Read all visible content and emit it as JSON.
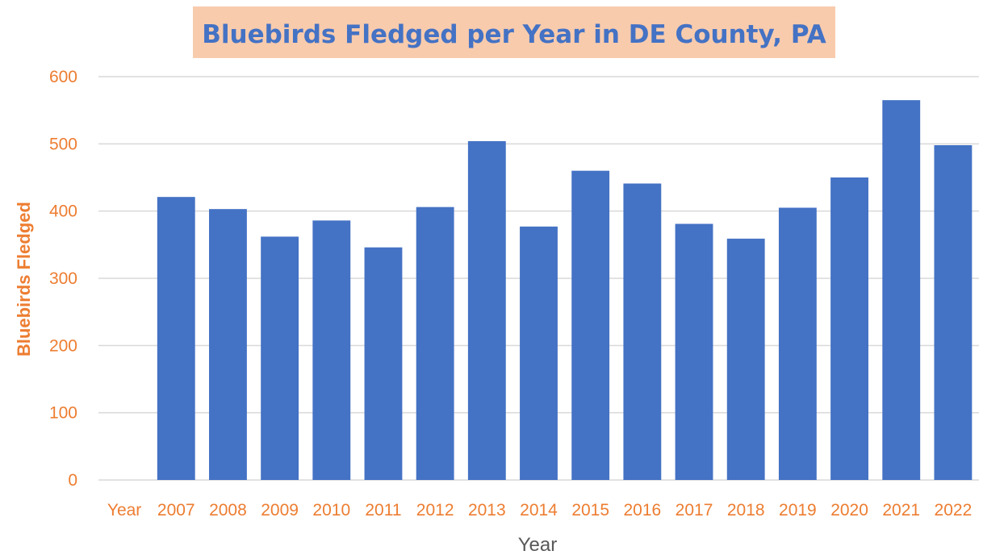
{
  "chart_data": {
    "type": "bar",
    "title": "Bluebirds Fledged per Year in DE County, PA",
    "xlabel": "Year",
    "ylabel": "Bluebirds Fledged",
    "categories": [
      "Year",
      "2007",
      "2008",
      "2009",
      "2010",
      "2011",
      "2012",
      "2013",
      "2014",
      "2015",
      "2016",
      "2017",
      "2018",
      "2019",
      "2020",
      "2021",
      "2022"
    ],
    "values": [
      0,
      421,
      403,
      362,
      386,
      346,
      406,
      504,
      377,
      460,
      441,
      381,
      359,
      405,
      450,
      565,
      498
    ],
    "ylim": [
      0,
      600
    ],
    "yticks": [
      0,
      100,
      200,
      300,
      400,
      500,
      600
    ],
    "grid": true,
    "legend": "none"
  },
  "colors": {
    "bar": "#4472C4",
    "title_text": "#4472C4",
    "title_bg": "#F8CBAD",
    "tick_labels": "#ED7D31",
    "ylabel": "#ED7D31",
    "xlabel": "#595959",
    "gridline": "#D9D9D9"
  }
}
